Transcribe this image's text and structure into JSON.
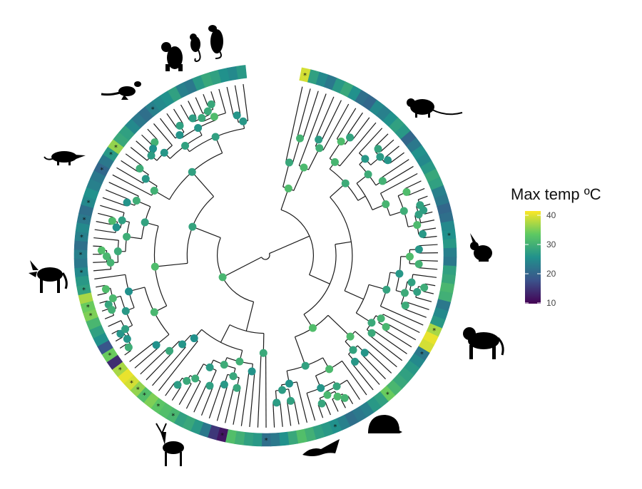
{
  "legend": {
    "title": "Max temp ºC",
    "ticks": [
      "10",
      "20",
      "30",
      "40"
    ],
    "range": [
      10,
      40
    ]
  },
  "colors": {
    "stops": [
      "#440154",
      "#3b528b",
      "#21918c",
      "#5ec962",
      "#fde725"
    ],
    "branch": "#1a1a1a",
    "silhouette": "#000000"
  },
  "silhouettes": [
    "quoll-icon",
    "possum-icon",
    "opossum-icon",
    "kangaroo-icon",
    "shrew-icon",
    "dog-icon",
    "deer-icon",
    "bat-icon",
    "hedgehog-icon",
    "monkey-icon",
    "rabbit-icon",
    "rat-icon"
  ],
  "tips": {
    "star_symbol": "*",
    "max_temps": [
      38,
      27,
      24,
      22,
      26,
      28,
      25,
      21,
      20,
      24,
      23,
      25,
      27,
      26,
      20,
      22,
      25,
      24,
      26,
      28,
      27,
      23,
      22,
      20,
      21,
      24,
      25,
      26,
      23,
      22,
      27,
      28,
      30,
      29,
      22,
      24,
      26,
      36,
      39,
      38,
      22,
      24,
      26,
      27,
      28,
      30,
      33,
      27,
      26,
      23,
      22,
      21,
      23,
      25,
      26,
      27,
      29,
      31,
      28,
      25,
      22,
      21,
      26,
      27,
      29,
      31,
      12,
      15,
      22,
      26,
      28,
      27,
      30,
      31,
      32,
      34,
      31,
      35,
      38,
      39,
      36,
      14,
      33,
      18,
      25,
      27,
      30,
      34,
      33,
      36,
      27,
      26,
      24,
      22,
      23,
      21,
      23,
      24,
      22,
      21,
      24,
      25,
      23,
      22,
      20,
      22,
      26,
      35,
      28,
      27,
      24,
      22,
      21,
      23,
      24,
      25,
      27,
      23,
      22,
      26,
      28,
      27,
      25,
      24,
      26
    ],
    "starred": [
      0,
      26,
      37,
      40,
      46,
      53,
      61,
      66,
      72,
      74,
      76,
      77,
      78,
      80,
      82,
      87,
      88,
      90,
      92,
      94,
      96,
      98,
      100,
      104,
      106,
      107,
      113
    ]
  }
}
